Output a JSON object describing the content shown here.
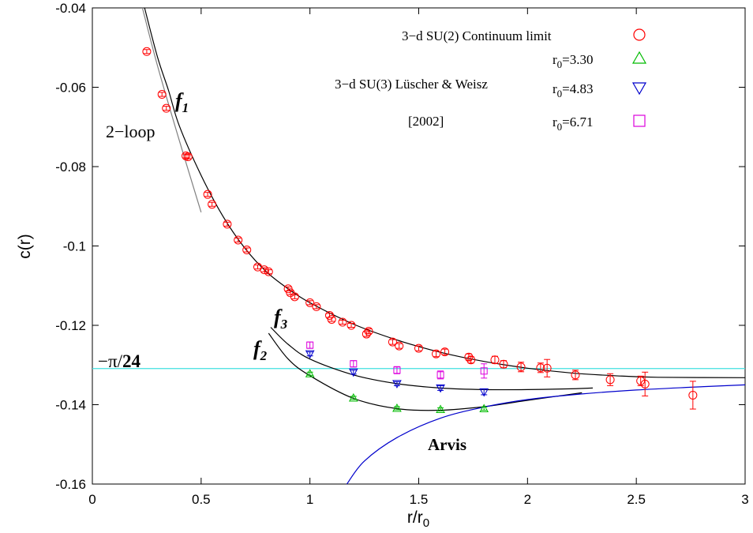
{
  "chart_data": {
    "type": "scatter",
    "xlabel": "r/r0",
    "xlabel_main": "r/r",
    "xlabel_sub": "0",
    "ylabel": "c(r)",
    "xlim": [
      0,
      3
    ],
    "ylim": [
      -0.16,
      -0.04
    ],
    "x_ticks": [
      {
        "value": 0,
        "label": "0"
      },
      {
        "value": 0.5,
        "label": "0.5"
      },
      {
        "value": 1,
        "label": "1"
      },
      {
        "value": 1.5,
        "label": "1.5"
      },
      {
        "value": 2,
        "label": "2"
      },
      {
        "value": 2.5,
        "label": "2.5"
      },
      {
        "value": 3,
        "label": "3"
      }
    ],
    "y_ticks": [
      {
        "value": -0.04,
        "label": "-0.04"
      },
      {
        "value": -0.06,
        "label": "-0.06"
      },
      {
        "value": -0.08,
        "label": "-0.08"
      },
      {
        "value": -0.1,
        "label": "-0.1"
      },
      {
        "value": -0.12,
        "label": "-0.12"
      },
      {
        "value": -0.14,
        "label": "-0.14"
      },
      {
        "value": -0.16,
        "label": "-0.16"
      }
    ],
    "grid": false,
    "legend_position": "top-right",
    "colors": {
      "su2": "#ff0000",
      "r330": "#00bb00",
      "r483": "#0000cc",
      "r671": "#dd00dd",
      "pi24": "#40e0e0",
      "arvis": "#0000cc",
      "fit": "#000000",
      "twoloop": "#808080"
    },
    "series": [
      {
        "key": "su2",
        "name": "3−d SU(2) Continuum limit",
        "marker": "circle",
        "color": "#ff0000",
        "points": [
          [
            0.25,
            -0.051,
            0.0005
          ],
          [
            0.32,
            -0.0618,
            0.0005
          ],
          [
            0.34,
            -0.0653,
            0.0005
          ],
          [
            0.43,
            -0.0773,
            0.0005
          ],
          [
            0.44,
            -0.0775,
            0.0005
          ],
          [
            0.53,
            -0.087,
            0.0005
          ],
          [
            0.55,
            -0.0895,
            0.0005
          ],
          [
            0.62,
            -0.0945,
            0.0005
          ],
          [
            0.67,
            -0.0985,
            0.0005
          ],
          [
            0.71,
            -0.101,
            0.0005
          ],
          [
            0.76,
            -0.1053,
            0.0005
          ],
          [
            0.79,
            -0.106,
            0.0005
          ],
          [
            0.81,
            -0.1065,
            0.0005
          ],
          [
            0.9,
            -0.1108,
            0.0005
          ],
          [
            0.91,
            -0.1118,
            0.0005
          ],
          [
            0.93,
            -0.1128,
            0.0005
          ],
          [
            1.0,
            -0.1143,
            0.0005
          ],
          [
            1.03,
            -0.1153,
            0.0005
          ],
          [
            1.09,
            -0.1175,
            0.0005
          ],
          [
            1.1,
            -0.1185,
            0.0005
          ],
          [
            1.15,
            -0.1192,
            0.0005
          ],
          [
            1.19,
            -0.12,
            0.0005
          ],
          [
            1.26,
            -0.1222,
            0.0006
          ],
          [
            1.27,
            -0.1215,
            0.0006
          ],
          [
            1.38,
            -0.1242,
            0.0006
          ],
          [
            1.41,
            -0.1252,
            0.0006
          ],
          [
            1.5,
            -0.1258,
            0.0006
          ],
          [
            1.58,
            -0.1272,
            0.0007
          ],
          [
            1.62,
            -0.1267,
            0.0007
          ],
          [
            1.73,
            -0.128,
            0.0008
          ],
          [
            1.74,
            -0.1287,
            0.0008
          ],
          [
            1.85,
            -0.1287,
            0.0009
          ],
          [
            1.89,
            -0.1298,
            0.0009
          ],
          [
            1.97,
            -0.1305,
            0.0012
          ],
          [
            2.06,
            -0.1307,
            0.0012
          ],
          [
            2.09,
            -0.1308,
            0.0022
          ],
          [
            2.22,
            -0.1325,
            0.0012
          ],
          [
            2.38,
            -0.1337,
            0.0015
          ],
          [
            2.52,
            -0.134,
            0.0012
          ],
          [
            2.54,
            -0.1348,
            0.003
          ],
          [
            2.76,
            -0.1376,
            0.0035
          ]
        ]
      },
      {
        "key": "r330",
        "name": "r0=3.30",
        "name_main": "r",
        "name_sub": "0",
        "name_rest": "=3.30",
        "marker": "triangle-up",
        "color": "#00bb00",
        "points": [
          [
            1.0,
            -0.1322,
            0.0004
          ],
          [
            1.2,
            -0.1383,
            0.0004
          ],
          [
            1.4,
            -0.1409,
            0.0004
          ],
          [
            1.6,
            -0.1412,
            0.0004
          ],
          [
            1.8,
            -0.141,
            0.0004
          ]
        ]
      },
      {
        "key": "r483",
        "name": "r0=4.83",
        "name_main": "r",
        "name_sub": "0",
        "name_rest": "=4.83",
        "marker": "triangle-down",
        "color": "#0000cc",
        "points": [
          [
            1.0,
            -0.1272,
            0.0005
          ],
          [
            1.2,
            -0.1318,
            0.0005
          ],
          [
            1.4,
            -0.1347,
            0.0005
          ],
          [
            1.6,
            -0.1358,
            0.0006
          ],
          [
            1.8,
            -0.1368,
            0.0007
          ]
        ]
      },
      {
        "key": "r671",
        "name": "r0=6.71",
        "name_main": "r",
        "name_sub": "0",
        "name_rest": "=6.71",
        "marker": "square",
        "color": "#dd00dd",
        "points": [
          [
            1.0,
            -0.125,
            0.0008
          ],
          [
            1.2,
            -0.1297,
            0.0008
          ],
          [
            1.4,
            -0.1313,
            0.0009
          ],
          [
            1.6,
            -0.1325,
            0.001
          ],
          [
            1.8,
            -0.1315,
            0.0018
          ]
        ]
      }
    ],
    "curves": [
      {
        "key": "f1",
        "label": "f",
        "label_sub": "1",
        "color": "#000000",
        "points": [
          [
            0.24,
            -0.04
          ],
          [
            0.3,
            -0.0525
          ],
          [
            0.35,
            -0.0608
          ],
          [
            0.4,
            -0.0698
          ],
          [
            0.5,
            -0.0822
          ],
          [
            0.6,
            -0.0925
          ],
          [
            0.7,
            -0.1005
          ],
          [
            0.8,
            -0.1065
          ],
          [
            0.9,
            -0.1108
          ],
          [
            1.0,
            -0.1143
          ],
          [
            1.2,
            -0.1197
          ],
          [
            1.4,
            -0.1237
          ],
          [
            1.6,
            -0.1268
          ],
          [
            1.8,
            -0.1291
          ],
          [
            2.0,
            -0.1308
          ],
          [
            2.2,
            -0.132
          ],
          [
            2.4,
            -0.1327
          ],
          [
            2.6,
            -0.1331
          ],
          [
            3.0,
            -0.1332
          ]
        ]
      },
      {
        "key": "f3",
        "label": "f",
        "label_sub": "3",
        "color": "#000000",
        "points": [
          [
            0.82,
            -0.1205
          ],
          [
            0.9,
            -0.1248
          ],
          [
            1.0,
            -0.1285
          ],
          [
            1.2,
            -0.1325
          ],
          [
            1.4,
            -0.1347
          ],
          [
            1.6,
            -0.1358
          ],
          [
            1.8,
            -0.1362
          ],
          [
            2.0,
            -0.1362
          ],
          [
            2.2,
            -0.136
          ],
          [
            2.3,
            -0.1358
          ]
        ]
      },
      {
        "key": "f2",
        "label": "f",
        "label_sub": "2",
        "color": "#000000",
        "points": [
          [
            0.81,
            -0.122
          ],
          [
            0.9,
            -0.1285
          ],
          [
            1.0,
            -0.1327
          ],
          [
            1.2,
            -0.1384
          ],
          [
            1.4,
            -0.141
          ],
          [
            1.6,
            -0.1414
          ],
          [
            1.8,
            -0.1405
          ],
          [
            2.0,
            -0.1389
          ],
          [
            2.25,
            -0.137
          ]
        ]
      },
      {
        "key": "twoloop",
        "label": "2−loop",
        "color": "#808080",
        "points": [
          [
            0.23,
            -0.04
          ],
          [
            0.3,
            -0.0547
          ],
          [
            0.4,
            -0.0735
          ],
          [
            0.5,
            -0.0915
          ]
        ]
      },
      {
        "key": "arvis",
        "label": "Arvis",
        "color": "#0000cc",
        "points": [
          [
            1.17,
            -0.16
          ],
          [
            1.25,
            -0.1542
          ],
          [
            1.4,
            -0.1483
          ],
          [
            1.6,
            -0.1434
          ],
          [
            1.8,
            -0.1406
          ],
          [
            2.0,
            -0.1387
          ],
          [
            2.25,
            -0.1373
          ],
          [
            2.5,
            -0.1363
          ],
          [
            2.75,
            -0.1356
          ],
          [
            3.0,
            -0.135
          ]
        ]
      }
    ],
    "hline": {
      "y": -0.1309,
      "label": "−π/24",
      "label_prefix": "−π/",
      "label_num": "24",
      "color": "#40e0e0"
    },
    "annotations": {
      "luscher_line1": "3−d SU(3) Lüscher & Weisz",
      "luscher_line2": "[2002]"
    }
  }
}
